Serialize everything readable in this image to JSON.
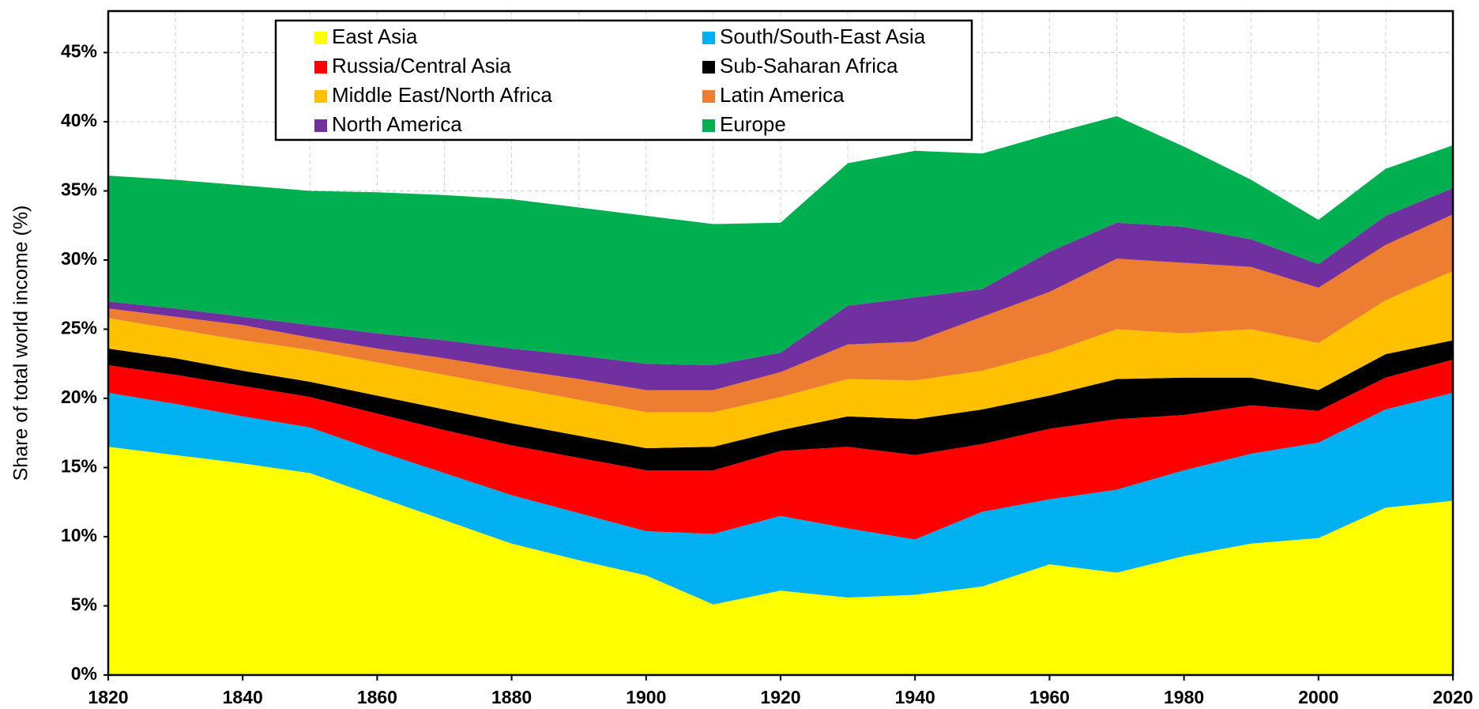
{
  "chart_data": {
    "type": "stacked_area",
    "y_label": "Share of total world income (%)",
    "x": [
      1820,
      1830,
      1840,
      1850,
      1860,
      1870,
      1880,
      1890,
      1900,
      1910,
      1920,
      1930,
      1940,
      1950,
      1960,
      1970,
      1980,
      1990,
      2000,
      2010,
      2020
    ],
    "xlim": [
      1820,
      2020
    ],
    "xticks": [
      1820,
      1840,
      1860,
      1880,
      1900,
      1920,
      1940,
      1960,
      1980,
      2000,
      2020
    ],
    "ylim": [
      0,
      48
    ],
    "yticks": [
      {
        "value": 0,
        "label": "0%"
      },
      {
        "value": 5,
        "label": "5%"
      },
      {
        "value": 10,
        "label": "10%"
      },
      {
        "value": 15,
        "label": "15%"
      },
      {
        "value": 20,
        "label": "20%"
      },
      {
        "value": 25,
        "label": "25%"
      },
      {
        "value": 30,
        "label": "30%"
      },
      {
        "value": 35,
        "label": "35%"
      },
      {
        "value": 40,
        "label": "40%"
      },
      {
        "value": 45,
        "label": "45%"
      }
    ],
    "grid": true,
    "legend": "top-left",
    "series": [
      {
        "name": "East Asia",
        "color": "#ffff00",
        "values": [
          16.5,
          15.9,
          15.3,
          14.6,
          12.9,
          11.2,
          9.5,
          8.3,
          7.2,
          5.1,
          6.1,
          5.6,
          5.8,
          6.4,
          8.0,
          7.4,
          8.6,
          9.5,
          9.9,
          12.1,
          12.6
        ]
      },
      {
        "name": "South/South-East Asia",
        "color": "#00b0f0",
        "values": [
          3.9,
          3.7,
          3.4,
          3.3,
          3.3,
          3.4,
          3.5,
          3.4,
          3.2,
          5.1,
          5.4,
          5.0,
          4.0,
          5.4,
          4.7,
          6.0,
          6.2,
          6.5,
          6.9,
          7.1,
          7.8
        ]
      },
      {
        "name": "Russia/Central Asia",
        "color": "#ff0000",
        "values": [
          2.0,
          2.1,
          2.2,
          2.2,
          2.7,
          3.1,
          3.6,
          4.0,
          4.4,
          4.6,
          4.7,
          5.9,
          6.1,
          4.9,
          5.1,
          5.1,
          4.0,
          3.5,
          2.3,
          2.3,
          2.4
        ]
      },
      {
        "name": "Sub-Saharan Africa",
        "color": "#000000",
        "values": [
          1.2,
          1.2,
          1.1,
          1.1,
          1.3,
          1.5,
          1.6,
          1.6,
          1.6,
          1.7,
          1.5,
          2.2,
          2.6,
          2.5,
          2.4,
          2.9,
          2.7,
          2.0,
          1.5,
          1.7,
          1.4
        ]
      },
      {
        "name": "Middle East/North Africa",
        "color": "#ffc000",
        "values": [
          2.2,
          2.1,
          2.2,
          2.3,
          2.4,
          2.5,
          2.6,
          2.6,
          2.6,
          2.5,
          2.4,
          2.7,
          2.8,
          2.8,
          3.1,
          3.6,
          3.2,
          3.5,
          3.4,
          3.9,
          5.0
        ]
      },
      {
        "name": "Latin America",
        "color": "#ed7d31",
        "values": [
          0.7,
          0.9,
          1.1,
          0.9,
          1.0,
          1.2,
          1.3,
          1.5,
          1.6,
          1.6,
          1.8,
          2.5,
          2.8,
          3.9,
          4.4,
          5.1,
          5.1,
          4.5,
          4.0,
          4.0,
          4.1
        ]
      },
      {
        "name": "North America",
        "color": "#7030a0",
        "values": [
          0.5,
          0.6,
          0.6,
          0.9,
          1.1,
          1.3,
          1.5,
          1.7,
          1.9,
          1.8,
          1.4,
          2.8,
          3.2,
          2.0,
          2.9,
          2.6,
          2.6,
          2.0,
          1.7,
          2.1,
          1.9
        ]
      },
      {
        "name": "Europe",
        "color": "#00b050",
        "values": [
          9.1,
          9.3,
          9.5,
          9.7,
          10.2,
          10.5,
          10.8,
          10.7,
          10.7,
          10.2,
          9.4,
          10.3,
          10.6,
          9.8,
          8.5,
          7.7,
          5.8,
          4.3,
          3.2,
          3.4,
          3.1
        ]
      }
    ]
  }
}
